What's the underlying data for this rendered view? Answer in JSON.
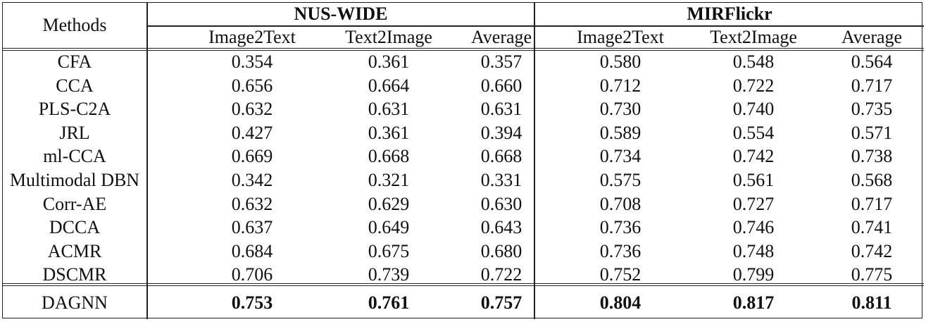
{
  "table": {
    "methods_header": "Methods",
    "groups": [
      "NUS-WIDE",
      "MIRFlickr"
    ],
    "subheaders": [
      "Image2Text",
      "Text2Image",
      "Average",
      "Image2Text",
      "Text2Image",
      "Average"
    ],
    "rows": [
      {
        "method": "CFA",
        "values": [
          "0.354",
          "0.361",
          "0.357",
          "0.580",
          "0.548",
          "0.564"
        ]
      },
      {
        "method": "CCA",
        "values": [
          "0.656",
          "0.664",
          "0.660",
          "0.712",
          "0.722",
          "0.717"
        ]
      },
      {
        "method": "PLS-C2A",
        "values": [
          "0.632",
          "0.631",
          "0.631",
          "0.730",
          "0.740",
          "0.735"
        ]
      },
      {
        "method": "JRL",
        "values": [
          "0.427",
          "0.361",
          "0.394",
          "0.589",
          "0.554",
          "0.571"
        ]
      },
      {
        "method": "ml-CCA",
        "values": [
          "0.669",
          "0.668",
          "0.668",
          "0.734",
          "0.742",
          "0.738"
        ]
      },
      {
        "method": "Multimodal DBN",
        "values": [
          "0.342",
          "0.321",
          "0.331",
          "0.575",
          "0.561",
          "0.568"
        ]
      },
      {
        "method": "Corr-AE",
        "values": [
          "0.632",
          "0.629",
          "0.630",
          "0.708",
          "0.727",
          "0.717"
        ]
      },
      {
        "method": "DCCA",
        "values": [
          "0.637",
          "0.649",
          "0.643",
          "0.736",
          "0.746",
          "0.741"
        ]
      },
      {
        "method": "ACMR",
        "values": [
          "0.684",
          "0.675",
          "0.680",
          "0.736",
          "0.748",
          "0.742"
        ]
      },
      {
        "method": "DSCMR",
        "values": [
          "0.706",
          "0.739",
          "0.722",
          "0.752",
          "0.799",
          "0.775"
        ]
      }
    ],
    "highlight_row": {
      "method": "DAGNN",
      "values": [
        "0.753",
        "0.761",
        "0.757",
        "0.804",
        "0.817",
        "0.811"
      ]
    }
  }
}
